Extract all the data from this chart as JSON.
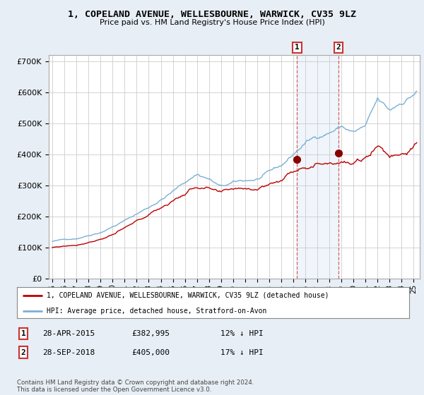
{
  "title": "1, COPELAND AVENUE, WELLESBOURNE, WARWICK, CV35 9LZ",
  "subtitle": "Price paid vs. HM Land Registry's House Price Index (HPI)",
  "ylabel_ticks": [
    "£0",
    "£100K",
    "£200K",
    "£300K",
    "£400K",
    "£500K",
    "£600K",
    "£700K"
  ],
  "ytick_vals": [
    0,
    100000,
    200000,
    300000,
    400000,
    500000,
    600000,
    700000
  ],
  "ylim": [
    0,
    720000
  ],
  "xlim_start": 1994.7,
  "xlim_end": 2025.5,
  "hpi_color": "#7ab0d4",
  "price_color": "#bb0000",
  "bg_color": "#e8eef5",
  "plot_bg": "#ffffff",
  "marker1_date": 2015.32,
  "marker1_price": 382995,
  "marker2_date": 2018.74,
  "marker2_price": 405000,
  "legend_line1": "1, COPELAND AVENUE, WELLESBOURNE, WARWICK, CV35 9LZ (detached house)",
  "legend_line2": "HPI: Average price, detached house, Stratford-on-Avon",
  "table_row1": [
    "1",
    "28-APR-2015",
    "£382,995",
    "12% ↓ HPI"
  ],
  "table_row2": [
    "2",
    "28-SEP-2018",
    "£405,000",
    "17% ↓ HPI"
  ],
  "footnote": "Contains HM Land Registry data © Crown copyright and database right 2024.\nThis data is licensed under the Open Government Licence v3.0."
}
